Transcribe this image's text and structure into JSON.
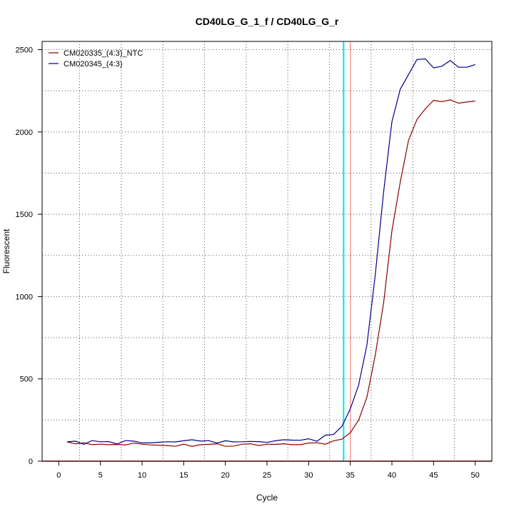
{
  "chart_data": {
    "type": "line",
    "title": "CD40LG_G_1_f / CD40LG_G_r",
    "xlabel": "Cycle",
    "ylabel": "Fluorescent",
    "xlim": [
      -2,
      52
    ],
    "ylim": [
      0,
      2550
    ],
    "x_ticks": [
      0,
      5,
      10,
      15,
      20,
      25,
      30,
      35,
      40,
      45,
      50
    ],
    "y_ticks": [
      0,
      500,
      1000,
      1500,
      2000,
      2500
    ],
    "grid": true,
    "legend_position": "top-left",
    "x": [
      1,
      2,
      3,
      4,
      5,
      6,
      7,
      8,
      9,
      10,
      11,
      12,
      13,
      14,
      15,
      16,
      17,
      18,
      19,
      20,
      21,
      22,
      23,
      24,
      25,
      26,
      27,
      28,
      29,
      30,
      31,
      32,
      33,
      34,
      35,
      36,
      37,
      38,
      39,
      40,
      41,
      42,
      43,
      44,
      45,
      46,
      47,
      48,
      49,
      50
    ],
    "series": [
      {
        "name": "CM020335_(4:3)_NTC",
        "color": "#8b0000",
        "values": [
          117,
          105,
          112,
          100,
          103,
          100,
          102,
          98,
          110,
          103,
          99,
          97,
          95,
          90,
          103,
          90,
          100,
          102,
          106,
          90,
          92,
          103,
          106,
          95,
          103,
          102,
          106,
          100,
          100,
          110,
          112,
          103,
          123,
          134,
          173,
          249,
          389,
          645,
          960,
          1400,
          1697,
          1950,
          2075,
          2140,
          2192,
          2184,
          2195,
          2175,
          2182,
          2188
        ]
      },
      {
        "name": "CM020345_(4:3)",
        "color": "#00008b",
        "values": [
          117,
          122,
          102,
          125,
          118,
          119,
          104,
          125,
          122,
          111,
          111,
          115,
          118,
          117,
          124,
          130,
          122,
          125,
          110,
          124,
          117,
          118,
          120,
          119,
          114,
          124,
          130,
          128,
          127,
          136,
          121,
          158,
          162,
          212,
          318,
          461,
          706,
          1133,
          1633,
          2063,
          2260,
          2349,
          2440,
          2444,
          2389,
          2399,
          2434,
          2393,
          2393,
          2409
        ]
      }
    ],
    "threshold_lines": [
      {
        "x": 34.2,
        "color": "#00e5ee"
      },
      {
        "x": 35.0,
        "color": "#ff6a6a"
      }
    ],
    "baseline": {
      "y": 0,
      "color": "#cd0000"
    }
  }
}
